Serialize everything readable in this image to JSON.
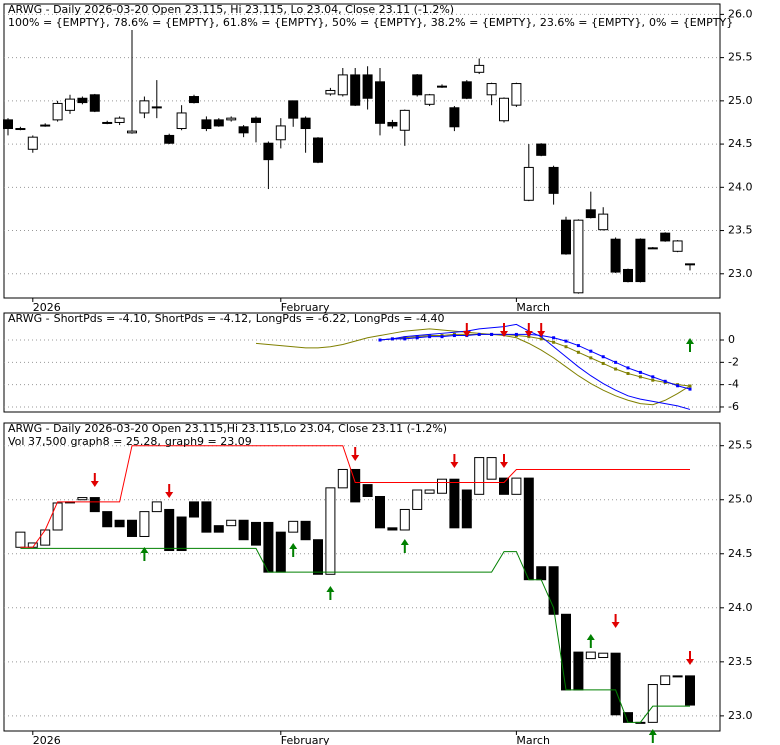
{
  "chart_data": [
    {
      "type": "candlestick",
      "title": "ARWG - Daily 2026-03-20 Open 23.115, Hi 23.115, Lo 23.04, Close 23.11 (-1.2%)",
      "legend": [
        {
          "text": "100% = {EMPTY},",
          "color": "#ff0000"
        },
        {
          "text": "78.6% = {EMPTY},",
          "color": "#ff00ff"
        },
        {
          "text": "61.8% = {EMPTY},",
          "color": "#8fa3bf"
        },
        {
          "text": "50% = {EMPTY},",
          "color": "#0000ff"
        },
        {
          "text": "38.2% = {EMPTY},",
          "color": "#8fa3bf"
        },
        {
          "text": "23.6% = {EMPTY},",
          "color": "#ff00ff"
        },
        {
          "text": "0% = {EMPTY}",
          "color": "#008000"
        }
      ],
      "categories": [
        null,
        null,
        "2026",
        null,
        null,
        null,
        null,
        null,
        null,
        null,
        null,
        null,
        null,
        null,
        null,
        null,
        null,
        null,
        null,
        null,
        null,
        null,
        "February",
        null,
        null,
        null,
        null,
        null,
        null,
        null,
        null,
        null,
        null,
        null,
        null,
        null,
        null,
        null,
        null,
        null,
        null,
        "March",
        null,
        null,
        null,
        null,
        null,
        null,
        null,
        null,
        null,
        null,
        null,
        null,
        null,
        null
      ],
      "open": [
        24.78,
        24.68,
        24.44,
        24.72,
        24.78,
        24.89,
        25.03,
        25.07,
        24.75,
        24.75,
        24.63,
        24.86,
        24.92,
        24.6,
        24.68,
        25.05,
        24.78,
        24.78,
        24.78,
        24.7,
        24.8,
        24.51,
        24.55,
        25.0,
        24.8,
        24.57,
        25.08,
        25.07,
        25.3,
        25.3,
        25.22,
        24.75,
        24.66,
        25.3,
        24.96,
        25.17,
        24.92,
        25.22,
        25.33,
        25.07,
        24.77,
        24.95,
        23.85,
        24.5,
        24.23,
        23.62,
        22.78,
        23.74,
        23.51,
        23.4,
        23.05,
        23.4,
        23.3,
        23.47,
        23.26,
        23.115
      ],
      "high": [
        24.8,
        24.7,
        24.6,
        24.74,
        25.0,
        25.07,
        25.05,
        25.08,
        24.77,
        24.82,
        25.82,
        25.05,
        25.24,
        24.62,
        24.95,
        25.07,
        24.82,
        24.8,
        24.82,
        24.72,
        24.82,
        24.53,
        24.8,
        25.0,
        24.82,
        24.58,
        25.15,
        25.38,
        25.38,
        25.4,
        25.38,
        24.78,
        24.9,
        25.31,
        25.08,
        25.19,
        24.94,
        25.24,
        25.49,
        25.21,
        25.04,
        25.21,
        24.5,
        24.51,
        24.25,
        23.66,
        23.63,
        23.95,
        23.77,
        23.42,
        23.06,
        23.41,
        23.31,
        23.48,
        23.39,
        23.115
      ],
      "low": [
        24.6,
        24.66,
        24.4,
        24.7,
        24.76,
        24.85,
        24.96,
        24.87,
        24.73,
        24.72,
        24.62,
        24.8,
        24.8,
        24.5,
        24.66,
        24.97,
        24.65,
        24.7,
        24.76,
        24.58,
        24.52,
        23.98,
        24.45,
        24.7,
        24.4,
        24.28,
        25.06,
        25.05,
        24.94,
        24.9,
        24.6,
        24.68,
        24.48,
        25.05,
        24.94,
        25.15,
        24.65,
        25.02,
        25.31,
        24.95,
        24.75,
        24.93,
        23.84,
        24.36,
        23.8,
        23.22,
        22.77,
        23.64,
        23.5,
        23.01,
        22.9,
        22.9,
        23.29,
        23.37,
        23.25,
        23.04
      ],
      "close": [
        24.68,
        24.68,
        24.58,
        24.72,
        24.97,
        25.02,
        24.98,
        24.88,
        24.75,
        24.8,
        24.65,
        25.0,
        24.93,
        24.51,
        24.86,
        24.98,
        24.68,
        24.71,
        24.8,
        24.63,
        24.75,
        24.32,
        24.71,
        24.8,
        24.68,
        24.29,
        25.12,
        25.3,
        24.95,
        25.03,
        24.74,
        24.71,
        24.89,
        25.07,
        25.07,
        25.17,
        24.7,
        25.03,
        25.41,
        25.2,
        25.03,
        25.2,
        24.23,
        24.37,
        23.93,
        23.23,
        23.62,
        23.65,
        23.69,
        23.02,
        22.91,
        22.91,
        23.3,
        23.38,
        23.38,
        23.11
      ],
      "ylim": [
        22.72,
        26.12
      ],
      "yticks": [
        {
          "value": 23,
          "label": "23.0"
        },
        23.5,
        {
          "value": 24,
          "label": "24.0"
        },
        24.5,
        {
          "value": 25,
          "label": "25.0"
        },
        25.5,
        {
          "value": 26,
          "label": "26.0"
        }
      ],
      "grid": true
    },
    {
      "type": "line",
      "title": "ARWG -",
      "series": [
        {
          "label": "ShortPds = -4.10,",
          "color": "#808000",
          "dots": false,
          "values": [
            null,
            null,
            null,
            null,
            null,
            null,
            null,
            null,
            null,
            null,
            null,
            null,
            null,
            null,
            null,
            null,
            null,
            null,
            null,
            null,
            -0.3,
            -0.4,
            -0.5,
            -0.6,
            -0.7,
            -0.7,
            -0.6,
            -0.4,
            -0.1,
            0.2,
            0.4,
            0.6,
            0.8,
            0.9,
            1.0,
            0.9,
            0.8,
            0.7,
            0.6,
            0.5,
            0.4,
            0.2,
            -0.3,
            -0.9,
            -1.6,
            -2.4,
            -3.2,
            -3.9,
            -4.5,
            -5.0,
            -5.4,
            -5.7,
            -5.8,
            -5.4,
            -4.8,
            -4.1
          ]
        },
        {
          "label": "ShortPds = -4.12,",
          "color": "#808000",
          "dots": true,
          "values": [
            null,
            null,
            null,
            null,
            null,
            null,
            null,
            null,
            null,
            null,
            null,
            null,
            null,
            null,
            null,
            null,
            null,
            null,
            null,
            null,
            null,
            null,
            null,
            null,
            null,
            null,
            null,
            null,
            null,
            null,
            0,
            0.1,
            0.2,
            0.3,
            0.4,
            0.4,
            0.5,
            0.5,
            0.5,
            0.5,
            0.5,
            0.4,
            0.3,
            0.1,
            -0.2,
            -0.6,
            -1.1,
            -1.6,
            -2.1,
            -2.6,
            -3.0,
            -3.3,
            -3.6,
            -3.8,
            -4.0,
            -4.12
          ]
        },
        {
          "label": "LongPds = -6.22,",
          "color": "#0000ff",
          "dots": false,
          "values": [
            null,
            null,
            null,
            null,
            null,
            null,
            null,
            null,
            null,
            null,
            null,
            null,
            null,
            null,
            null,
            null,
            null,
            null,
            null,
            null,
            null,
            null,
            null,
            null,
            null,
            null,
            null,
            null,
            null,
            null,
            0,
            0.1,
            0.3,
            0.4,
            0.5,
            0.6,
            0.7,
            0.8,
            1.0,
            1.1,
            1.2,
            1.4,
            0.8,
            0.3,
            -0.6,
            -1.5,
            -2.4,
            -3.2,
            -3.9,
            -4.5,
            -5.0,
            -5.3,
            -5.5,
            -5.7,
            -5.9,
            -6.22
          ]
        },
        {
          "label": "LongPds = -4.40",
          "color": "#0000ff",
          "dots": true,
          "values": [
            null,
            null,
            null,
            null,
            null,
            null,
            null,
            null,
            null,
            null,
            null,
            null,
            null,
            null,
            null,
            null,
            null,
            null,
            null,
            null,
            null,
            null,
            null,
            null,
            null,
            null,
            null,
            null,
            null,
            null,
            0,
            0.1,
            0.1,
            0.2,
            0.3,
            0.3,
            0.4,
            0.4,
            0.5,
            0.5,
            0.5,
            0.5,
            0.5,
            0.4,
            0.2,
            -0.1,
            -0.5,
            -1.0,
            -1.5,
            -2.0,
            -2.5,
            -2.9,
            -3.3,
            -3.7,
            -4.1,
            -4.4
          ]
        }
      ],
      "ylim": [
        -6.45,
        2.42
      ],
      "yticks": [
        -6,
        -4,
        -2,
        0
      ],
      "grid": true
    },
    {
      "type": "candlestick",
      "title": "ARWG - Daily 2026-03-20 Open 23.115,Hi 23.115,Lo 23.04, Close 23.11 (-1.2%)",
      "volume_label": "Vol 37,500",
      "categories": [
        null,
        null,
        "2026",
        null,
        null,
        null,
        null,
        null,
        null,
        null,
        null,
        null,
        null,
        null,
        null,
        null,
        null,
        null,
        null,
        null,
        null,
        null,
        "February",
        null,
        null,
        null,
        null,
        null,
        null,
        null,
        null,
        null,
        null,
        null,
        null,
        null,
        null,
        null,
        null,
        null,
        null,
        "March",
        null,
        null,
        null,
        null,
        null,
        null,
        null,
        null,
        null,
        null,
        null,
        null,
        null,
        null
      ],
      "open": [
        null,
        24.56,
        24.56,
        24.58,
        24.72,
        24.98,
        25.0,
        25.02,
        24.89,
        24.81,
        24.81,
        24.66,
        24.89,
        24.91,
        24.84,
        24.98,
        24.98,
        24.76,
        24.76,
        24.81,
        24.79,
        24.79,
        24.7,
        24.7,
        24.8,
        24.63,
        24.31,
        25.11,
        25.28,
        25.14,
        25.03,
        24.74,
        24.72,
        24.91,
        25.06,
        25.06,
        25.19,
        25.09,
        25.05,
        25.19,
        25.2,
        25.05,
        25.2,
        24.38,
        24.38,
        23.94,
        23.59,
        23.53,
        23.54,
        23.58,
        23.03,
        22.94,
        22.94,
        23.29,
        23.37,
        23.37
      ],
      "close": [
        null,
        24.7,
        24.6,
        24.72,
        24.97,
        24.98,
        25.02,
        24.89,
        24.75,
        24.75,
        24.66,
        24.89,
        24.98,
        24.53,
        24.53,
        24.84,
        24.7,
        24.7,
        24.81,
        24.63,
        24.58,
        24.33,
        24.33,
        24.8,
        24.63,
        24.31,
        25.11,
        25.28,
        24.98,
        25.03,
        24.74,
        24.72,
        24.91,
        25.09,
        25.09,
        25.19,
        24.74,
        24.74,
        25.39,
        25.39,
        25.05,
        25.2,
        24.26,
        24.26,
        23.94,
        23.24,
        23.24,
        23.59,
        23.58,
        23.01,
        22.94,
        22.94,
        23.29,
        23.37,
        23.37,
        23.1
      ],
      "series": [
        {
          "label": "graph8 = 25.28,",
          "color": "#ff0000",
          "dots": false,
          "values": [
            null,
            24.56,
            24.56,
            24.72,
            24.98,
            24.98,
            24.98,
            24.98,
            24.98,
            24.98,
            25.5,
            25.5,
            25.5,
            25.5,
            25.5,
            25.5,
            25.5,
            25.5,
            25.5,
            25.5,
            25.5,
            25.5,
            25.5,
            25.5,
            25.5,
            25.5,
            25.5,
            25.5,
            25.16,
            25.16,
            25.16,
            25.16,
            25.16,
            25.16,
            25.16,
            25.16,
            25.16,
            25.16,
            25.16,
            25.16,
            25.16,
            25.28,
            25.28,
            25.28,
            25.28,
            25.28,
            25.28,
            25.28,
            25.28,
            25.28,
            25.28,
            25.28,
            25.28,
            25.28,
            25.28,
            25.28
          ]
        },
        {
          "label": "graph9 = 23.09",
          "color": "#008000",
          "dots": false,
          "values": [
            null,
            24.55,
            24.55,
            24.55,
            24.55,
            24.55,
            24.55,
            24.55,
            24.55,
            24.55,
            24.55,
            24.55,
            24.55,
            24.55,
            24.55,
            24.55,
            24.55,
            24.55,
            24.55,
            24.55,
            24.55,
            24.33,
            24.33,
            24.33,
            24.33,
            24.33,
            24.33,
            24.33,
            24.33,
            24.33,
            24.33,
            24.33,
            24.33,
            24.33,
            24.33,
            24.33,
            24.33,
            24.33,
            24.33,
            24.33,
            24.52,
            24.52,
            24.26,
            24.26,
            24.0,
            23.24,
            23.24,
            23.24,
            23.24,
            23.24,
            22.94,
            22.94,
            23.09,
            23.09,
            23.09,
            23.09
          ]
        }
      ],
      "ylim": [
        22.86,
        25.71
      ],
      "yticks": [
        {
          "value": 23,
          "label": "23.0"
        },
        23.5,
        {
          "value": 24,
          "label": "24.0"
        },
        24.5,
        {
          "value": 25,
          "label": "25.0"
        },
        25.5
      ],
      "grid": true
    }
  ]
}
